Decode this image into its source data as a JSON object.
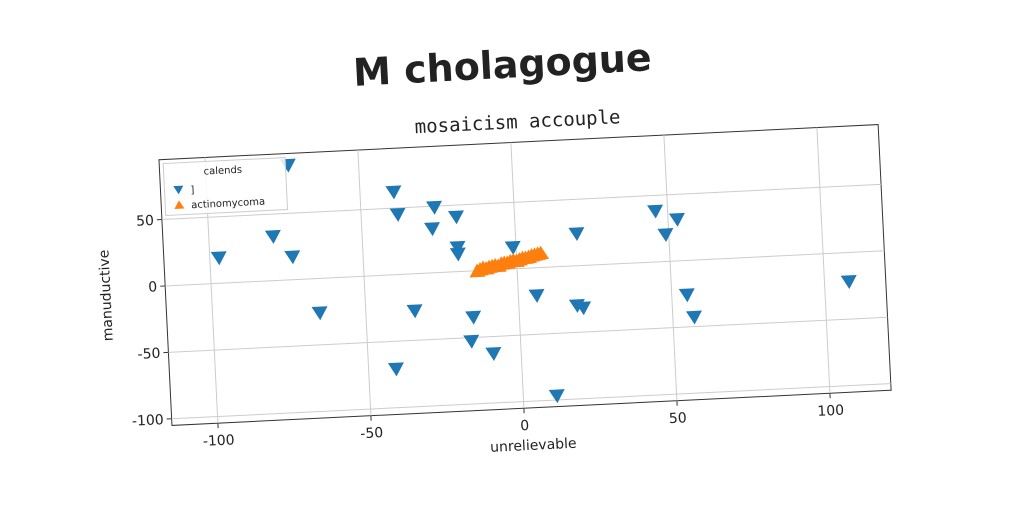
{
  "chart_data": {
    "type": "scatter",
    "title": "M cholagogue",
    "subtitle": "mosaicism accouple",
    "x_label": "unrelievable",
    "y_label": "manuductive",
    "legend_title": "calends",
    "legend": "upper left",
    "grid": true,
    "xlim": [
      -115,
      120
    ],
    "xticks": [
      -100,
      -50,
      0,
      50,
      100
    ],
    "ylim": [
      -105,
      95
    ],
    "yticks": [
      -100,
      -50,
      0,
      50
    ],
    "series": [
      {
        "name": "]",
        "color": "#1f77b4",
        "marker": "triangle-down",
        "x": [
          -73,
          -97,
          -79,
          -73,
          -65,
          -39,
          -38,
          -34,
          -41,
          -26,
          -27,
          -19,
          -19,
          -19,
          -15,
          -16,
          -9,
          -1,
          6,
          11,
          20,
          19,
          21,
          46,
          49,
          53,
          55,
          57,
          108
        ],
        "values": [
          86,
          19,
          33,
          17,
          -26,
          62,
          45,
          -28,
          -71,
          49,
          33,
          41,
          18,
          13,
          -35,
          -53,
          -63,
          16,
          -21,
          -97,
          24,
          -30,
          -32,
          38,
          20,
          31,
          -26,
          -43,
          -22
        ]
      },
      {
        "name": "actinomycoma",
        "color": "#ff7f0e",
        "marker": "triangle-up",
        "x": [
          -13,
          -12,
          -11,
          -10,
          -9,
          -8,
          -7,
          -6,
          -5,
          -4,
          -3,
          -2,
          -1,
          0,
          1,
          2,
          3,
          4,
          5,
          6,
          7,
          8
        ],
        "values": [
          0,
          1,
          2,
          1.5,
          2.5,
          3,
          3.5,
          3,
          4.5,
          5,
          5,
          6,
          6.5,
          6,
          7,
          8,
          8,
          8.5,
          9.5,
          10,
          10.5,
          11
        ]
      }
    ]
  }
}
